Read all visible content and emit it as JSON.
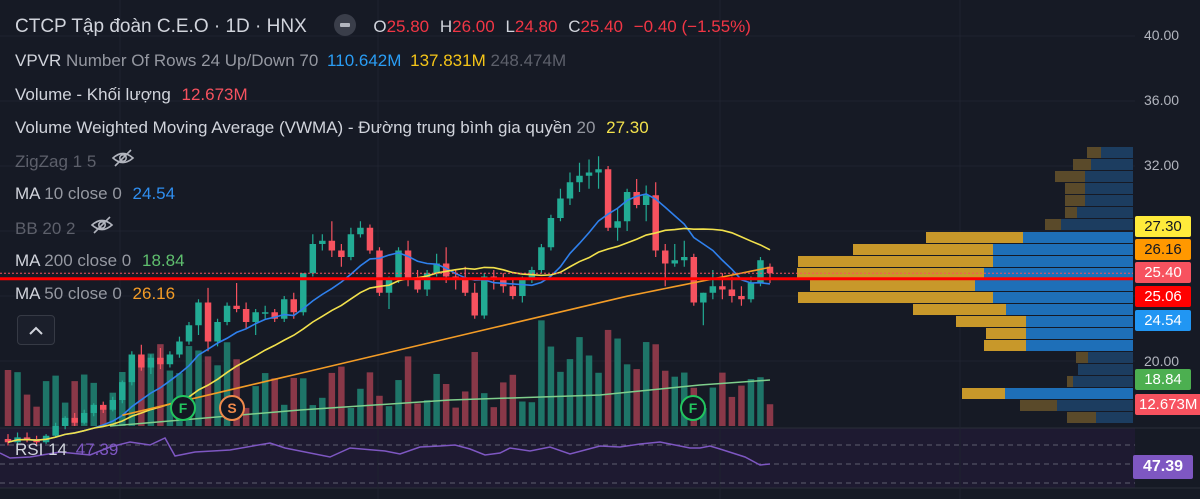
{
  "header": {
    "title": "CTCP Tập đoàn C.E.O · 1D · HNX",
    "ohlc": {
      "o_label": "O",
      "o": "25.80",
      "h_label": "H",
      "h": "26.00",
      "l_label": "L",
      "l": "24.80",
      "c_label": "C",
      "c": "25.40",
      "change": "−0.40 (−1.55%)"
    }
  },
  "indicators": {
    "vpvr": {
      "name": "VPVR",
      "params": "Number Of Rows 24 Up/Down 70",
      "up": "110.642M",
      "down": "137.831M",
      "total": "248.474M"
    },
    "volume": {
      "name": "Volume - Khối lượng",
      "value": "12.673M"
    },
    "vwma": {
      "name": "Volume Weighted Moving Average (VWMA) - Đường trung bình gia quyền",
      "params": "20",
      "value": "27.30"
    },
    "zigzag": {
      "name": "ZigZag",
      "params": "1 5",
      "hidden_icon": "eye-off-icon"
    },
    "ma10": {
      "name": "MA",
      "params": "10 close 0",
      "value": "24.54"
    },
    "bb": {
      "name": "BB",
      "params": "20 2",
      "hidden_icon": "eye-off-icon"
    },
    "ma200": {
      "name": "MA",
      "params": "200 close 0",
      "value": "18.84"
    },
    "ma50": {
      "name": "MA",
      "params": "50 close 0",
      "value": "26.16"
    },
    "rsi": {
      "name": "RSI",
      "params": "14",
      "value": "47.39"
    }
  },
  "price_axis": {
    "ticks": [
      "40.00",
      "36.00",
      "32.00",
      "20.00"
    ],
    "labels": [
      {
        "value": "27.30",
        "bg": "#ffeb3b",
        "fg": "#131722",
        "series": "VWMA 20"
      },
      {
        "value": "26.16",
        "bg": "#ff9800",
        "fg": "#131722",
        "series": "MA 50"
      },
      {
        "value": "25.40",
        "bg": "#f7525f",
        "fg": "#ffffff",
        "series": "Last price"
      },
      {
        "value": "25.06",
        "bg": "#ff0000",
        "fg": "#ffffff",
        "series": "VPVR POC"
      },
      {
        "value": "24.54",
        "bg": "#2196f3",
        "fg": "#ffffff",
        "series": "MA 10"
      },
      {
        "value": "18.84",
        "bg": "#4caf50",
        "fg": "#ffffff",
        "series": "MA 200"
      },
      {
        "value": "12.673M",
        "bg": "#f7525f",
        "fg": "#ffffff",
        "series": "Volume"
      }
    ]
  },
  "rsi_axis": {
    "value": "47.39"
  },
  "markers": [
    {
      "label": "F",
      "color": "#22c55e"
    },
    {
      "label": "S",
      "color": "#f08a4b"
    },
    {
      "label": "F",
      "color": "#22c55e"
    }
  ],
  "colors": {
    "background": "#161a25",
    "up": "#22ab94",
    "down": "#f7525f",
    "ma10": "#2f80ed",
    "vwma": "#f2e14c",
    "ma50": "#f39c26",
    "ma200": "#7fcf8c",
    "rsi": "#7e57c2",
    "poc": "#ff0000",
    "vp_up": "#1e6fb8",
    "vp_down": "#c8982a"
  },
  "chart_data": {
    "type": "candlestick",
    "title": "CTCP Tập đoàn C.E.O · 1D · HNX",
    "ylabel": "Price",
    "ylim": [
      12,
      42
    ],
    "y_ticks": [
      20,
      32,
      36,
      40
    ],
    "grid": true,
    "last": {
      "open": 25.8,
      "high": 26.0,
      "low": 24.8,
      "close": 25.4,
      "change": -0.4,
      "change_pct": -1.55
    },
    "candles": [
      [
        15.2,
        15.5,
        14.8,
        15.0
      ],
      [
        15.0,
        15.6,
        14.9,
        15.3
      ],
      [
        15.3,
        15.6,
        15.0,
        15.2
      ],
      [
        15.2,
        15.4,
        14.8,
        15.0
      ],
      [
        15.0,
        15.5,
        14.9,
        15.4
      ],
      [
        15.4,
        16.2,
        15.3,
        16.0
      ],
      [
        16.0,
        16.6,
        15.8,
        16.5
      ],
      [
        16.5,
        16.8,
        16.0,
        16.2
      ],
      [
        16.2,
        17.0,
        16.1,
        16.8
      ],
      [
        16.8,
        17.4,
        16.6,
        17.3
      ],
      [
        17.3,
        17.5,
        16.8,
        17.0
      ],
      [
        17.0,
        17.8,
        16.9,
        17.6
      ],
      [
        17.6,
        18.8,
        17.4,
        18.7
      ],
      [
        18.7,
        20.6,
        18.5,
        20.4
      ],
      [
        20.4,
        21.0,
        19.4,
        19.6
      ],
      [
        19.6,
        20.4,
        19.2,
        20.2
      ],
      [
        20.2,
        20.8,
        19.5,
        19.8
      ],
      [
        19.8,
        20.6,
        19.6,
        20.4
      ],
      [
        20.4,
        21.5,
        20.2,
        21.2
      ],
      [
        21.2,
        22.4,
        21.0,
        22.2
      ],
      [
        22.2,
        23.8,
        21.6,
        23.6
      ],
      [
        23.6,
        24.5,
        20.6,
        21.2
      ],
      [
        21.2,
        22.6,
        20.9,
        22.4
      ],
      [
        22.4,
        23.6,
        22.2,
        23.4
      ],
      [
        23.4,
        24.8,
        23.0,
        23.2
      ],
      [
        23.2,
        23.6,
        22.0,
        22.4
      ],
      [
        22.4,
        23.2,
        21.6,
        23.0
      ],
      [
        23.0,
        23.4,
        22.6,
        23.0
      ],
      [
        23.0,
        23.2,
        22.4,
        22.6
      ],
      [
        22.6,
        24.0,
        22.4,
        23.8
      ],
      [
        23.8,
        24.2,
        22.6,
        23.0
      ],
      [
        23.0,
        25.4,
        22.8,
        25.4
      ],
      [
        25.4,
        27.8,
        25.2,
        27.2
      ],
      [
        27.2,
        27.8,
        26.8,
        27.4
      ],
      [
        27.4,
        28.6,
        26.4,
        26.8
      ],
      [
        26.8,
        27.2,
        25.8,
        26.4
      ],
      [
        26.4,
        28.2,
        26.2,
        27.8
      ],
      [
        27.8,
        28.6,
        27.6,
        28.2
      ],
      [
        28.2,
        28.4,
        26.6,
        26.8
      ],
      [
        26.8,
        27.0,
        24.0,
        24.2
      ],
      [
        24.2,
        25.2,
        23.2,
        25.0
      ],
      [
        25.0,
        27.0,
        24.8,
        26.8
      ],
      [
        26.8,
        27.4,
        24.6,
        25.0
      ],
      [
        25.0,
        25.6,
        24.2,
        24.4
      ],
      [
        24.4,
        25.6,
        24.0,
        25.4
      ],
      [
        25.4,
        26.6,
        25.2,
        26.0
      ],
      [
        26.0,
        27.0,
        24.8,
        25.2
      ],
      [
        25.2,
        25.6,
        24.4,
        25.0
      ],
      [
        25.0,
        25.8,
        24.0,
        24.2
      ],
      [
        24.2,
        24.8,
        22.6,
        22.8
      ],
      [
        22.8,
        25.4,
        22.6,
        25.2
      ],
      [
        25.2,
        25.6,
        24.4,
        25.0
      ],
      [
        25.0,
        25.4,
        24.2,
        24.6
      ],
      [
        24.6,
        25.0,
        23.8,
        24.0
      ],
      [
        24.0,
        25.2,
        23.6,
        25.0
      ],
      [
        25.0,
        25.8,
        24.8,
        25.6
      ],
      [
        25.6,
        27.2,
        25.4,
        27.0
      ],
      [
        27.0,
        29.0,
        26.8,
        28.8
      ],
      [
        28.8,
        30.6,
        28.6,
        30.0
      ],
      [
        30.0,
        31.6,
        29.6,
        31.0
      ],
      [
        31.0,
        32.2,
        30.4,
        31.4
      ],
      [
        31.4,
        32.4,
        30.6,
        31.6
      ],
      [
        31.6,
        32.6,
        30.6,
        31.8
      ],
      [
        31.8,
        32.0,
        28.0,
        28.2
      ],
      [
        28.2,
        29.4,
        27.4,
        28.6
      ],
      [
        28.6,
        30.6,
        28.0,
        30.4
      ],
      [
        30.4,
        31.2,
        29.4,
        29.6
      ],
      [
        29.6,
        30.8,
        28.6,
        30.2
      ],
      [
        30.2,
        31.0,
        26.4,
        26.8
      ],
      [
        26.8,
        27.2,
        24.6,
        26.0
      ],
      [
        26.0,
        27.2,
        25.8,
        26.2
      ],
      [
        26.2,
        27.4,
        25.8,
        26.4
      ],
      [
        26.4,
        26.6,
        23.4,
        23.6
      ],
      [
        23.6,
        24.2,
        22.2,
        24.2
      ],
      [
        24.2,
        25.6,
        23.8,
        24.6
      ],
      [
        24.6,
        25.4,
        23.8,
        24.4
      ],
      [
        24.4,
        25.2,
        23.6,
        24.0
      ],
      [
        24.0,
        24.6,
        23.4,
        23.8
      ],
      [
        23.8,
        25.2,
        23.6,
        24.8
      ],
      [
        24.8,
        26.4,
        24.6,
        26.2
      ],
      [
        25.8,
        26.0,
        24.8,
        25.4
      ]
    ],
    "volume_sample_note": "volume bars under candles, last = 12.673M",
    "volume_profile": {
      "rows": 24,
      "up_total": "110.642M",
      "down_total": "137.831M",
      "total": "248.474M",
      "poc_price": 25.06
    },
    "overlays": [
      {
        "name": "MA 10",
        "last": 24.54
      },
      {
        "name": "VWMA 20",
        "last": 27.3
      },
      {
        "name": "MA 50",
        "last": 26.16
      },
      {
        "name": "MA 200",
        "last": 18.84
      }
    ],
    "rsi": {
      "period": 14,
      "last": 47.39,
      "levels": [
        70,
        50,
        30
      ]
    }
  }
}
